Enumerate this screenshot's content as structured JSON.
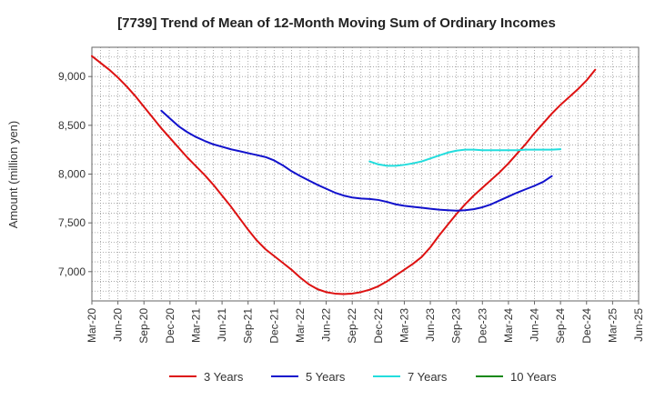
{
  "chart_data": {
    "type": "line",
    "title": "[7739]  Trend of Mean of 12-Month Moving Sum of Ordinary Incomes",
    "ylabel": "Amount (million yen)",
    "xlabel": "",
    "ylim": [
      6700,
      9300
    ],
    "yticks": [
      7000,
      7500,
      8000,
      8500,
      9000
    ],
    "ytick_labels": [
      "7,000",
      "7,500",
      "8,000",
      "8,500",
      "9,000"
    ],
    "x_range": [
      "2020-03",
      "2025-06"
    ],
    "x_tick_labels": [
      "Mar-20",
      "Jun-20",
      "Sep-20",
      "Dec-20",
      "Mar-21",
      "Jun-21",
      "Sep-21",
      "Dec-21",
      "Mar-22",
      "Jun-22",
      "Sep-22",
      "Dec-22",
      "Mar-23",
      "Jun-23",
      "Sep-23",
      "Dec-23",
      "Mar-24",
      "Jun-24",
      "Sep-24",
      "Dec-24",
      "Mar-25",
      "Jun-25"
    ],
    "grid": true,
    "legend_position": "bottom",
    "series": [
      {
        "name": "3 Years",
        "color": "#dd1111",
        "start": "2020-03",
        "values": [
          9210,
          9140,
          9070,
          8990,
          8900,
          8800,
          8690,
          8580,
          8470,
          8370,
          8270,
          8170,
          8080,
          7990,
          7890,
          7780,
          7670,
          7550,
          7430,
          7320,
          7230,
          7160,
          7090,
          7020,
          6940,
          6870,
          6820,
          6790,
          6775,
          6770,
          6775,
          6790,
          6815,
          6850,
          6900,
          6960,
          7020,
          7080,
          7150,
          7250,
          7370,
          7480,
          7590,
          7690,
          7780,
          7860,
          7940,
          8020,
          8110,
          8210,
          8310,
          8420,
          8520,
          8620,
          8710,
          8790,
          8870,
          8960,
          9070
        ]
      },
      {
        "name": "5 Years",
        "color": "#1111cc",
        "start": "2020-11",
        "values": [
          8650,
          8570,
          8490,
          8430,
          8380,
          8340,
          8305,
          8280,
          8255,
          8235,
          8215,
          8195,
          8175,
          8140,
          8090,
          8030,
          7980,
          7935,
          7890,
          7850,
          7810,
          7780,
          7760,
          7750,
          7745,
          7735,
          7715,
          7690,
          7675,
          7665,
          7655,
          7645,
          7635,
          7630,
          7625,
          7630,
          7640,
          7660,
          7690,
          7730,
          7770,
          7810,
          7845,
          7880,
          7920,
          7980
        ]
      },
      {
        "name": "7 Years",
        "color": "#22dddd",
        "start": "2022-11",
        "values": [
          8130,
          8100,
          8085,
          8085,
          8095,
          8110,
          8130,
          8160,
          8190,
          8220,
          8240,
          8250,
          8250,
          8245,
          8245,
          8245,
          8245,
          8245,
          8250,
          8250,
          8250,
          8250,
          8255
        ]
      },
      {
        "name": "10 Years",
        "color": "#118811",
        "start": "2025-03",
        "values": []
      }
    ]
  }
}
